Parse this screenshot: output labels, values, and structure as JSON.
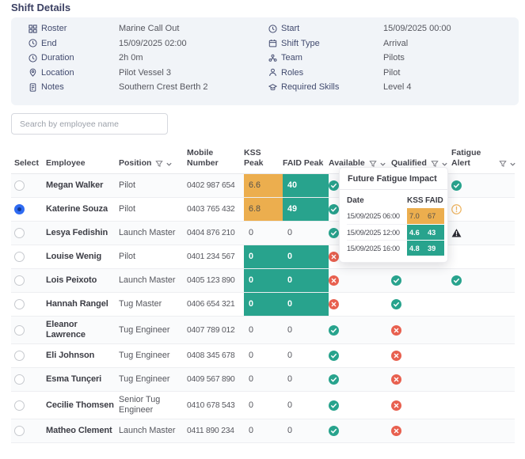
{
  "title": "Shift Details",
  "details": {
    "left": [
      {
        "icon": "roster-icon",
        "label": "Roster",
        "value": "Marine Call Out"
      },
      {
        "icon": "clock-icon",
        "label": "End",
        "value": "15/09/2025 02:00"
      },
      {
        "icon": "clock-icon",
        "label": "Duration",
        "value": "2h 0m"
      },
      {
        "icon": "location-icon",
        "label": "Location",
        "value": "Pilot Vessel 3"
      },
      {
        "icon": "notes-icon",
        "label": "Notes",
        "value": "Southern Crest Berth 2"
      }
    ],
    "right": [
      {
        "icon": "clock-icon",
        "label": "Start",
        "value": "15/09/2025 00:00"
      },
      {
        "icon": "calendar-icon",
        "label": "Shift Type",
        "value": "Arrival"
      },
      {
        "icon": "team-icon",
        "label": "Team",
        "value": "Pilots"
      },
      {
        "icon": "person-icon",
        "label": "Roles",
        "value": "Pilot"
      },
      {
        "icon": "skills-icon",
        "label": "Required Skills",
        "value": "Level 4"
      }
    ]
  },
  "search": {
    "placeholder": "Search by employee name"
  },
  "table": {
    "header": [
      {
        "label": "Select",
        "filter": false
      },
      {
        "label": "Employee",
        "filter": false
      },
      {
        "label": "Position",
        "filter": true
      },
      {
        "label": "Mobile Number",
        "filter": false
      },
      {
        "label": "KSS Peak",
        "filter": false
      },
      {
        "label": "FAID Peak",
        "filter": false
      },
      {
        "label": "Available",
        "filter": true
      },
      {
        "label": "Qualified",
        "filter": true
      },
      {
        "label": "Fatigue Alert",
        "filter": false
      },
      {
        "label": "",
        "filter": true
      }
    ],
    "status_icons": {
      "yes": "check-circle-icon",
      "no": "cross-circle-icon",
      "ok": "check-circle-icon",
      "caution": "alert-circle-icon",
      "alert": "alert-triangle-icon"
    },
    "rows": [
      {
        "name": "Megan Walker",
        "position": "Pilot",
        "mobile": "0402 987 654",
        "kss": "6.6",
        "faid": "40",
        "kss_highlight": "orange",
        "faid_highlight": "teal",
        "available": "yes",
        "qualified": null,
        "fatigue_alert": "ok",
        "selected": false
      },
      {
        "name": "Katerine Souza",
        "position": "Pilot",
        "mobile": "0403 765 432",
        "kss": "6.8",
        "faid": "49",
        "kss_highlight": "orange",
        "faid_highlight": "teal",
        "available": "yes",
        "qualified": null,
        "fatigue_alert": "caution",
        "selected": true
      },
      {
        "name": "Lesya Fedishin",
        "position": "Launch Master",
        "mobile": "0404 876 210",
        "kss": "0",
        "faid": "0",
        "kss_highlight": null,
        "faid_highlight": null,
        "available": "yes",
        "qualified": null,
        "fatigue_alert": "alert",
        "selected": false
      },
      {
        "name": "Louise Wenig",
        "position": "Pilot",
        "mobile": "0401 234 567",
        "kss": "0",
        "faid": "0",
        "kss_highlight": "teal",
        "faid_highlight": "teal",
        "available": "no",
        "qualified": "yes",
        "fatigue_alert": null,
        "selected": false
      },
      {
        "name": "Lois Peixoto",
        "position": "Launch Master",
        "mobile": "0405 123 890",
        "kss": "0",
        "faid": "0",
        "kss_highlight": "teal",
        "faid_highlight": "teal",
        "available": "no",
        "qualified": "yes",
        "fatigue_alert": "ok",
        "selected": false
      },
      {
        "name": "Hannah Rangel",
        "position": "Tug Master",
        "mobile": "0406 654 321",
        "kss": "0",
        "faid": "0",
        "kss_highlight": "teal",
        "faid_highlight": "teal",
        "available": "no",
        "qualified": "yes",
        "fatigue_alert": null,
        "selected": false
      },
      {
        "name": "Eleanor Lawrence",
        "position": "Tug Engineer",
        "mobile": "0407 789 012",
        "kss": "0",
        "faid": "0",
        "kss_highlight": null,
        "faid_highlight": null,
        "available": "yes",
        "qualified": "no",
        "fatigue_alert": null,
        "selected": false
      },
      {
        "name": "Eli Johnson",
        "position": "Tug Engineer",
        "mobile": "0408 345 678",
        "kss": "0",
        "faid": "0",
        "kss_highlight": null,
        "faid_highlight": null,
        "available": "yes",
        "qualified": "no",
        "fatigue_alert": null,
        "selected": false
      },
      {
        "name": "Esma Tunçeri",
        "position": "Tug Engineer",
        "mobile": "0409 567 890",
        "kss": "0",
        "faid": "0",
        "kss_highlight": null,
        "faid_highlight": null,
        "available": "yes",
        "qualified": "no",
        "fatigue_alert": null,
        "selected": false
      },
      {
        "name": "Cecilie Thomsen",
        "position": "Senior Tug Engineer",
        "mobile": "0410 678 543",
        "kss": "0",
        "faid": "0",
        "kss_highlight": null,
        "faid_highlight": null,
        "available": "yes",
        "qualified": "no",
        "fatigue_alert": null,
        "selected": false
      },
      {
        "name": "Matheo Clement",
        "position": "Launch Master",
        "mobile": "0411 890 234",
        "kss": "0",
        "faid": "0",
        "kss_highlight": null,
        "faid_highlight": null,
        "available": "yes",
        "qualified": "no",
        "fatigue_alert": null,
        "selected": false
      }
    ]
  },
  "popup": {
    "title": "Future Fatigue Impact",
    "columns": [
      "Date",
      "KSS",
      "FAID"
    ],
    "rows": [
      {
        "date": "15/09/2025 06:00",
        "kss": "7.0",
        "faid": "67",
        "style": "orange"
      },
      {
        "date": "15/09/2025 12:00",
        "kss": "4.6",
        "faid": "43",
        "style": "teal"
      },
      {
        "date": "15/09/2025 16:00",
        "kss": "4.8",
        "faid": "39",
        "style": "teal"
      }
    ]
  },
  "colors": {
    "teal": "#28A38D",
    "orange": "#ECAE4E",
    "red": "#E8604F",
    "alert_orange": "#EDB35E",
    "alert_dark": "#2B2B33",
    "radio_blue": "#2F6BF2",
    "heading_navy": "#3B4063",
    "panel_bg": "#F1F4F8"
  }
}
